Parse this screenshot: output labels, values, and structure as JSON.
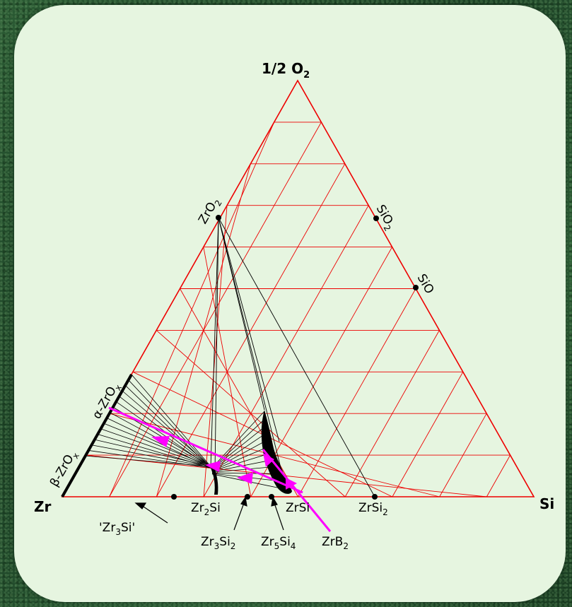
{
  "apex": {
    "top": "1/2 O",
    "top_sub": "2",
    "left": "Zr",
    "right": "Si"
  },
  "phases": {
    "zro2": {
      "main": "ZrO",
      "sub": "2"
    },
    "sio2": {
      "main": "SiO",
      "sub": "2"
    },
    "sio": {
      "main": "SiO"
    },
    "alpha_zrox": {
      "text": "α-ZrO",
      "sub": "x"
    },
    "beta_zrox": {
      "text": "β-ZrO",
      "sub": "x"
    },
    "zr3si": {
      "text": "'Zr",
      "sub": "3",
      "tail": "Si'"
    },
    "zr2si": {
      "main": "Zr",
      "sub": "2",
      "tail": "Si"
    },
    "zrsi": {
      "text": "ZrSi"
    },
    "zrsi2": {
      "main": "ZrSi",
      "sub": "2"
    },
    "zr3si2": {
      "main": "Zr",
      "sub": "3",
      "mid": "Si",
      "sub2": "2"
    },
    "zr5si4": {
      "main": "Zr",
      "sub": "5",
      "mid": "Si",
      "sub2": "4"
    },
    "zrb2": {
      "main": "ZrB",
      "sub": "2"
    }
  },
  "colors": {
    "grid": "#ee0000",
    "tieline": "#000000",
    "path": "#ff00ff",
    "card": "#e6f5e0"
  }
}
